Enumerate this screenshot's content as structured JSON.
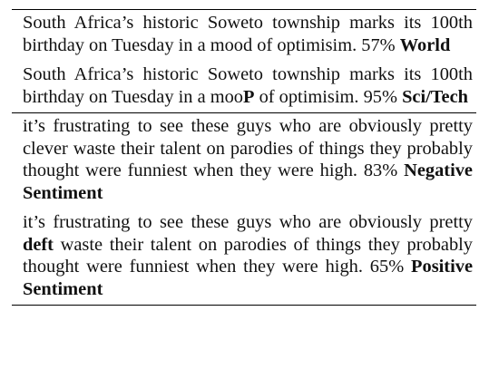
{
  "groups": [
    {
      "examples": [
        {
          "before": "South Africa’s historic Soweto township marks its 100th birthday on Tuesday in a ",
          "highlight": "",
          "after": "mood of optimisim.",
          "confidence": "57%",
          "label": "World"
        },
        {
          "before": "South Africa’s historic Soweto township marks its 100th birthday on Tuesday in a moo",
          "highlight": "P",
          "after": " of optimisim.",
          "confidence": "95%",
          "label": "Sci/Tech"
        }
      ]
    },
    {
      "examples": [
        {
          "before": "it’s frustrating to see these guys who are obviously pretty ",
          "highlight": "",
          "after": "clever waste their talent on parodies of things they probably thought were funniest when they were high.",
          "confidence": "83%",
          "label": "Negative Sentiment"
        },
        {
          "before": "it’s frustrating to see these guys who are obviously pretty ",
          "highlight": "deft",
          "after": " waste their talent on parodies of things they probably thought were funniest when they were high.",
          "confidence": "65%",
          "label": "Positive Sentiment"
        }
      ]
    }
  ]
}
